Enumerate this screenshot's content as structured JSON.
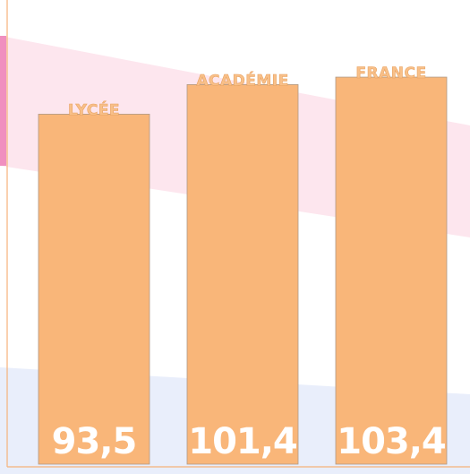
{
  "chart_data": {
    "type": "bar",
    "categories": [
      "LYCÉE",
      "ACADÉMIE",
      "FRANCE"
    ],
    "values": [
      93.5,
      101.4,
      103.4
    ],
    "value_labels": [
      "93,5",
      "101,4",
      "103,4"
    ],
    "color": "#f9b679",
    "ylim": [
      0,
      124
    ]
  }
}
